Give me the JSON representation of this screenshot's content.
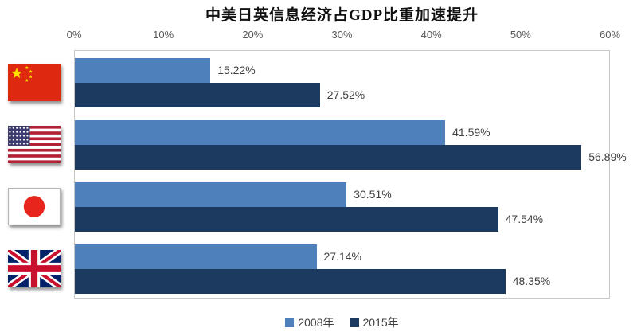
{
  "title": "中美日英信息经济占GDP比重加速提升",
  "chart_data": {
    "type": "bar",
    "orientation": "horizontal",
    "title": "中美日英信息经济占GDP比重加速提升",
    "categories": [
      "中国",
      "美国",
      "日本",
      "英国"
    ],
    "category_keys": [
      "china",
      "usa",
      "japan",
      "uk"
    ],
    "series": [
      {
        "name": "2008年",
        "color": "#4E80BC",
        "values": [
          15.22,
          41.59,
          30.51,
          27.14
        ],
        "labels": [
          "15.22%",
          "41.59%",
          "30.51%",
          "27.14%"
        ]
      },
      {
        "name": "2015年",
        "color": "#1C3A60",
        "values": [
          27.52,
          56.89,
          47.54,
          48.35
        ],
        "labels": [
          "27.52%",
          "56.89%",
          "47.54%",
          "48.35%"
        ]
      }
    ],
    "xlim": [
      0,
      60
    ],
    "x_ticks": [
      "0%",
      "10%",
      "20%",
      "30%",
      "40%",
      "50%",
      "60%"
    ],
    "grid": false,
    "legend_position": "bottom"
  },
  "colors": {
    "series_2008": "#4E80BC",
    "series_2015": "#1C3A60",
    "axis_text": "#595959",
    "label_text": "#404040",
    "plot_border": "#C8C8C8"
  }
}
